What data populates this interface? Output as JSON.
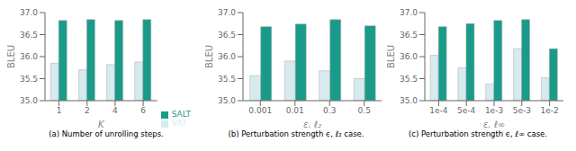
{
  "chart_data": [
    {
      "type": "bar",
      "title": "(a) Number of unrolling steps.",
      "xlabel": "K",
      "ylabel": "BLEU",
      "categories": [
        "1",
        "2",
        "4",
        "6"
      ],
      "series": [
        {
          "name": "VAT",
          "color": "#d6eaf0",
          "values": [
            35.85,
            35.7,
            35.82,
            35.88
          ]
        },
        {
          "name": "SALT",
          "color": "#1a9b8a",
          "values": [
            36.82,
            36.84,
            36.82,
            36.84
          ]
        }
      ],
      "ylim": [
        35.0,
        37.0
      ],
      "yticks": [
        {
          "value": 35,
          "label": "35.0"
        },
        35.5,
        {
          "value": 36,
          "label": "36.0"
        },
        36.5,
        {
          "value": 37,
          "label": "37.0"
        }
      ],
      "grid": false,
      "legend": "lower right"
    },
    {
      "type": "bar",
      "title": "(b) Perturbation strength ϵ, ℓ₂ case.",
      "xlabel": "ε, ℓ₂",
      "ylabel": "BLEU",
      "categories": [
        "0.001",
        "0.01",
        "0.3",
        "0.5"
      ],
      "series": [
        {
          "name": "VAT",
          "color": "#d6eaf0",
          "values": [
            35.57,
            35.9,
            35.68,
            35.5
          ]
        },
        {
          "name": "SALT",
          "color": "#1a9b8a",
          "values": [
            36.68,
            36.74,
            36.84,
            36.7
          ]
        }
      ],
      "ylim": [
        35.0,
        37.0
      ],
      "yticks": [
        {
          "value": 35,
          "label": "35.0"
        },
        35.5,
        {
          "value": 36,
          "label": "36.0"
        },
        36.5,
        {
          "value": 37,
          "label": "37.0"
        }
      ],
      "grid": false
    },
    {
      "type": "bar",
      "title": "(c) Perturbation strength ϵ, ℓ∞ case.",
      "xlabel": "ε, ℓ∞",
      "ylabel": "BLEU",
      "categories": [
        "1e-4",
        "5e-4",
        "1e-3",
        "5e-3",
        "1e-2"
      ],
      "series": [
        {
          "name": "VAT",
          "color": "#d6eaf0",
          "values": [
            36.03,
            35.75,
            35.38,
            36.18,
            35.52
          ]
        },
        {
          "name": "SALT",
          "color": "#1a9b8a",
          "values": [
            36.68,
            36.75,
            36.82,
            36.84,
            36.18
          ]
        }
      ],
      "ylim": [
        35.0,
        37.0
      ],
      "yticks": [
        {
          "value": 35,
          "label": "35.0"
        },
        35.5,
        {
          "value": 36,
          "label": "36.0"
        },
        36.5,
        {
          "value": 37,
          "label": "37.0"
        }
      ],
      "grid": false
    }
  ]
}
